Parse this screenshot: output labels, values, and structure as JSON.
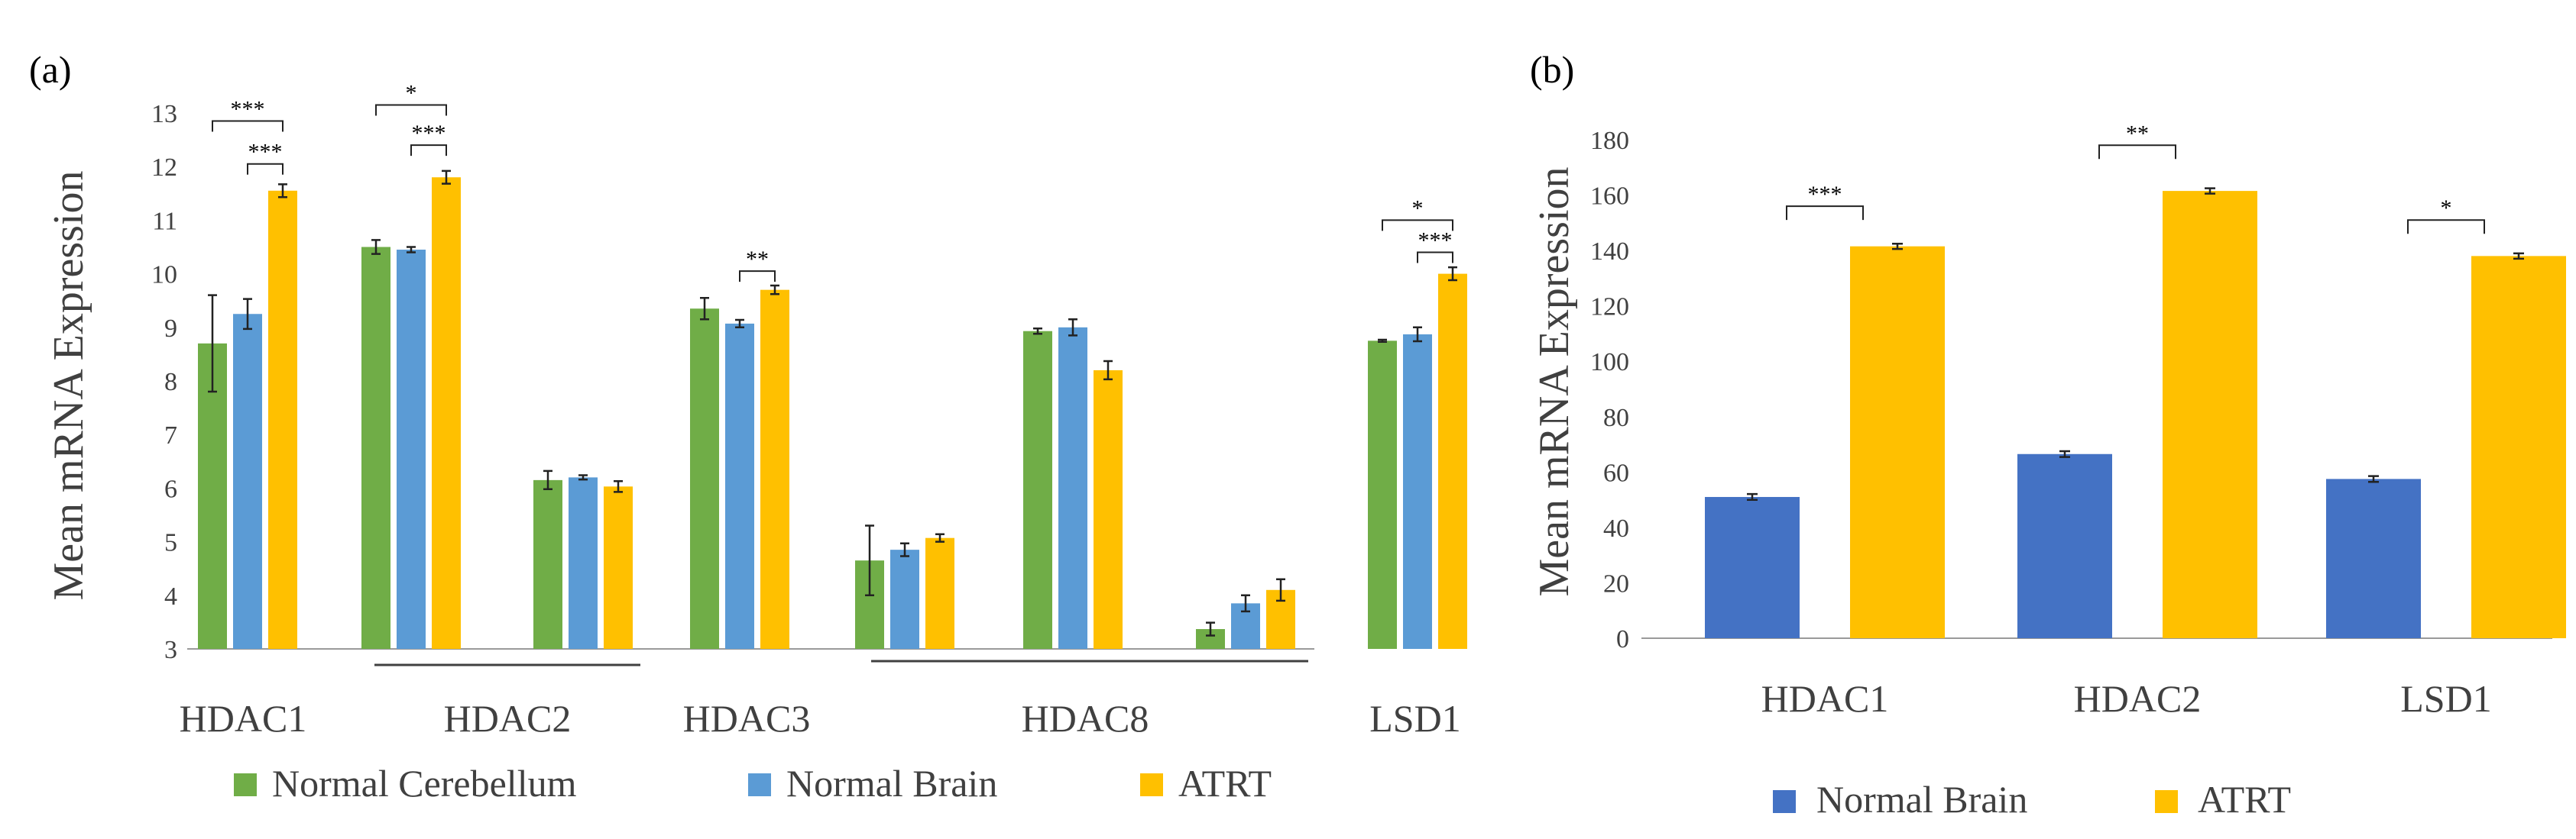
{
  "colors": {
    "normal_cerebellum": "#70AD47",
    "normal_brain_a": "#5B9BD5",
    "atrt": "#FFC000",
    "normal_brain_b": "#4472C4"
  },
  "chart_data": [
    {
      "type": "bar",
      "panel_label": "(a)",
      "ylabel": "Mean mRNA Expression",
      "ylim": [
        3,
        13
      ],
      "yticks": [
        "3",
        "4",
        "5",
        "6",
        "7",
        "8",
        "9",
        "10",
        "11",
        "12",
        "13"
      ],
      "categories": [
        "HDAC1",
        "HDAC2",
        "HDAC2",
        "HDAC3",
        "HDAC8",
        "HDAC8",
        "HDAC8",
        "LSD1"
      ],
      "category_labels": [
        "HDAC1",
        "HDAC2",
        "HDAC3",
        "HDAC8",
        "LSD1"
      ],
      "series": [
        {
          "name": "Normal Cerebellum",
          "values": [
            8.7,
            10.5,
            6.15,
            9.35,
            4.65,
            8.93,
            3.37,
            8.75
          ],
          "errors": [
            0.9,
            0.13,
            0.17,
            0.2,
            0.65,
            0.05,
            0.12,
            0.02
          ]
        },
        {
          "name": "Normal Brain",
          "values": [
            9.25,
            10.45,
            6.2,
            9.07,
            4.85,
            9.0,
            3.85,
            8.87
          ],
          "errors": [
            0.28,
            0.05,
            0.04,
            0.07,
            0.12,
            0.15,
            0.15,
            0.13
          ]
        },
        {
          "name": "ATRT",
          "values": [
            11.55,
            11.8,
            6.03,
            9.7,
            5.07,
            8.2,
            4.1,
            10.0
          ],
          "errors": [
            0.12,
            0.12,
            0.1,
            0.08,
            0.07,
            0.17,
            0.2,
            0.12
          ]
        }
      ],
      "annotations": [
        {
          "text": "***",
          "group": 0,
          "from": 0,
          "to": 2,
          "level": 12.85
        },
        {
          "text": "***",
          "group": 0,
          "from": 1,
          "to": 2,
          "level": 12.05
        },
        {
          "text": "*",
          "group": 1,
          "from": 0,
          "to": 2,
          "level": 13.15
        },
        {
          "text": "***",
          "group": 1,
          "from": 1,
          "to": 2,
          "level": 12.4
        },
        {
          "text": "**",
          "group": 3,
          "from": 1,
          "to": 2,
          "level": 10.05
        },
        {
          "text": "*",
          "group": 7,
          "from": 0,
          "to": 2,
          "level": 11.0
        },
        {
          "text": "***",
          "group": 7,
          "from": 1,
          "to": 2,
          "level": 10.4
        }
      ],
      "legend": [
        "Normal Cerebellum",
        "Normal Brain",
        "ATRT"
      ]
    },
    {
      "type": "bar",
      "panel_label": "(b)",
      "ylabel": "Mean mRNA Expression",
      "ylim": [
        0,
        180
      ],
      "yticks": [
        "0",
        "20",
        "40",
        "60",
        "80",
        "100",
        "120",
        "140",
        "160",
        "180"
      ],
      "categories": [
        "HDAC1",
        "HDAC2",
        "LSD1"
      ],
      "series": [
        {
          "name": "Normal Brain",
          "values": [
            51,
            66.5,
            57.5
          ],
          "errors": [
            0.5,
            0.5,
            0.5
          ]
        },
        {
          "name": "ATRT",
          "values": [
            141.5,
            161.5,
            138
          ],
          "errors": [
            0.4,
            0.4,
            0.4
          ]
        }
      ],
      "annotations": [
        {
          "text": "***",
          "group": 0,
          "level": 156
        },
        {
          "text": "**",
          "group": 1,
          "level": 178
        },
        {
          "text": "*",
          "group": 2,
          "level": 151
        }
      ],
      "legend": [
        "Normal Brain",
        "ATRT"
      ]
    }
  ]
}
